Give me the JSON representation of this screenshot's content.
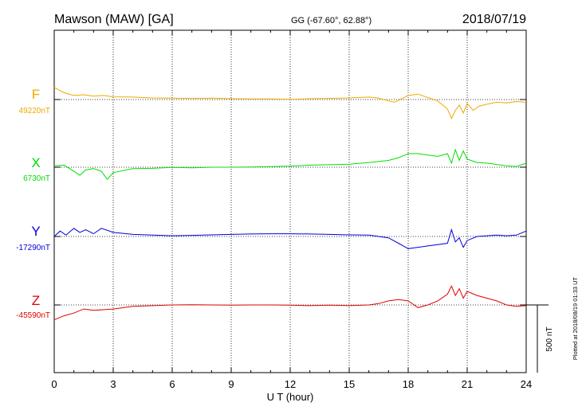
{
  "header": {
    "station": "Mawson (MAW)  [GA]",
    "coords": "GG (-67.60°,  62.88°)",
    "date": "2018/07/19"
  },
  "footer_note": "Plotted at 2018/08/19 01:33 UT",
  "scale_bar_label": "500 nT",
  "chart_data": {
    "type": "line",
    "xlabel": "U T (hour)",
    "xlim": [
      0,
      24
    ],
    "xticks": [
      0,
      3,
      6,
      9,
      12,
      15,
      18,
      21,
      24
    ],
    "grid": true,
    "scale_nT": 500,
    "series": [
      {
        "name": "F",
        "baseline_label": "49220nT",
        "color": "#f0a800",
        "x": [
          0,
          0.5,
          1,
          1.5,
          2,
          2.5,
          3,
          4,
          5,
          6,
          7,
          8,
          9,
          10,
          11,
          12,
          13,
          14,
          15,
          16,
          16.5,
          17,
          17.3,
          17.6,
          18,
          18.5,
          19,
          19.5,
          20,
          20.2,
          20.4,
          20.6,
          20.8,
          21,
          21.3,
          21.6,
          22,
          22.5,
          23,
          23.5,
          24
        ],
        "y": [
          49310,
          49270,
          49250,
          49255,
          49245,
          49250,
          49240,
          49238,
          49232,
          49230,
          49228,
          49230,
          49226,
          49225,
          49224,
          49222,
          49226,
          49228,
          49232,
          49238,
          49230,
          49210,
          49200,
          49220,
          49250,
          49260,
          49235,
          49210,
          49150,
          49080,
          49140,
          49180,
          49120,
          49190,
          49140,
          49170,
          49185,
          49200,
          49195,
          49205,
          49200
        ]
      },
      {
        "name": "X",
        "baseline_label": "6730nT",
        "color": "#00e000",
        "x": [
          0,
          0.5,
          1,
          1.3,
          1.6,
          2,
          2.4,
          2.7,
          3,
          4,
          5,
          6,
          7,
          8,
          9,
          10,
          11,
          12,
          13,
          14,
          15,
          16,
          17,
          17.5,
          18,
          18.5,
          19,
          19.5,
          20,
          20.2,
          20.4,
          20.6,
          20.8,
          21,
          21.5,
          22,
          22.5,
          23,
          23.5,
          24
        ],
        "y": [
          6740,
          6745,
          6700,
          6670,
          6710,
          6720,
          6700,
          6640,
          6690,
          6720,
          6722,
          6728,
          6725,
          6730,
          6730,
          6732,
          6735,
          6738,
          6745,
          6748,
          6752,
          6765,
          6780,
          6800,
          6830,
          6830,
          6820,
          6810,
          6830,
          6760,
          6860,
          6780,
          6850,
          6790,
          6765,
          6760,
          6750,
          6740,
          6735,
          6760
        ]
      },
      {
        "name": "Y",
        "baseline_label": "-17290nT",
        "color": "#0000d8",
        "x": [
          0,
          0.3,
          0.6,
          1,
          1.3,
          1.6,
          2,
          2.4,
          3,
          4,
          5,
          6,
          7,
          8,
          9,
          10,
          11,
          12,
          13,
          14,
          15,
          16,
          17,
          17.5,
          18,
          18.5,
          19,
          19.5,
          20,
          20.2,
          20.4,
          20.6,
          20.8,
          21,
          21.5,
          22,
          22.5,
          23,
          23.5,
          24
        ],
        "y": [
          -17290,
          -17250,
          -17280,
          -17230,
          -17260,
          -17240,
          -17270,
          -17230,
          -17260,
          -17275,
          -17280,
          -17285,
          -17282,
          -17278,
          -17275,
          -17272,
          -17270,
          -17270,
          -17272,
          -17275,
          -17278,
          -17280,
          -17300,
          -17340,
          -17380,
          -17370,
          -17360,
          -17350,
          -17340,
          -17240,
          -17330,
          -17300,
          -17370,
          -17320,
          -17290,
          -17285,
          -17280,
          -17285,
          -17280,
          -17250
        ]
      },
      {
        "name": "Z",
        "baseline_label": "-45590nT",
        "color": "#e00000",
        "x": [
          0,
          0.5,
          1,
          1.5,
          2,
          3,
          4,
          5,
          6,
          7,
          8,
          9,
          10,
          11,
          12,
          13,
          14,
          15,
          16,
          16.5,
          17,
          17.5,
          18,
          18.5,
          19,
          19.5,
          20,
          20.2,
          20.4,
          20.6,
          20.8,
          21,
          21.5,
          22,
          22.5,
          23,
          23.5,
          24
        ],
        "y": [
          -45700,
          -45670,
          -45650,
          -45620,
          -45630,
          -45620,
          -45600,
          -45595,
          -45590,
          -45588,
          -45590,
          -45592,
          -45590,
          -45590,
          -45592,
          -45595,
          -45592,
          -45595,
          -45590,
          -45580,
          -45560,
          -45550,
          -45560,
          -45610,
          -45590,
          -45560,
          -45510,
          -45450,
          -45520,
          -45470,
          -45540,
          -45490,
          -45520,
          -45540,
          -45560,
          -45590,
          -45600,
          -45595
        ]
      }
    ]
  }
}
